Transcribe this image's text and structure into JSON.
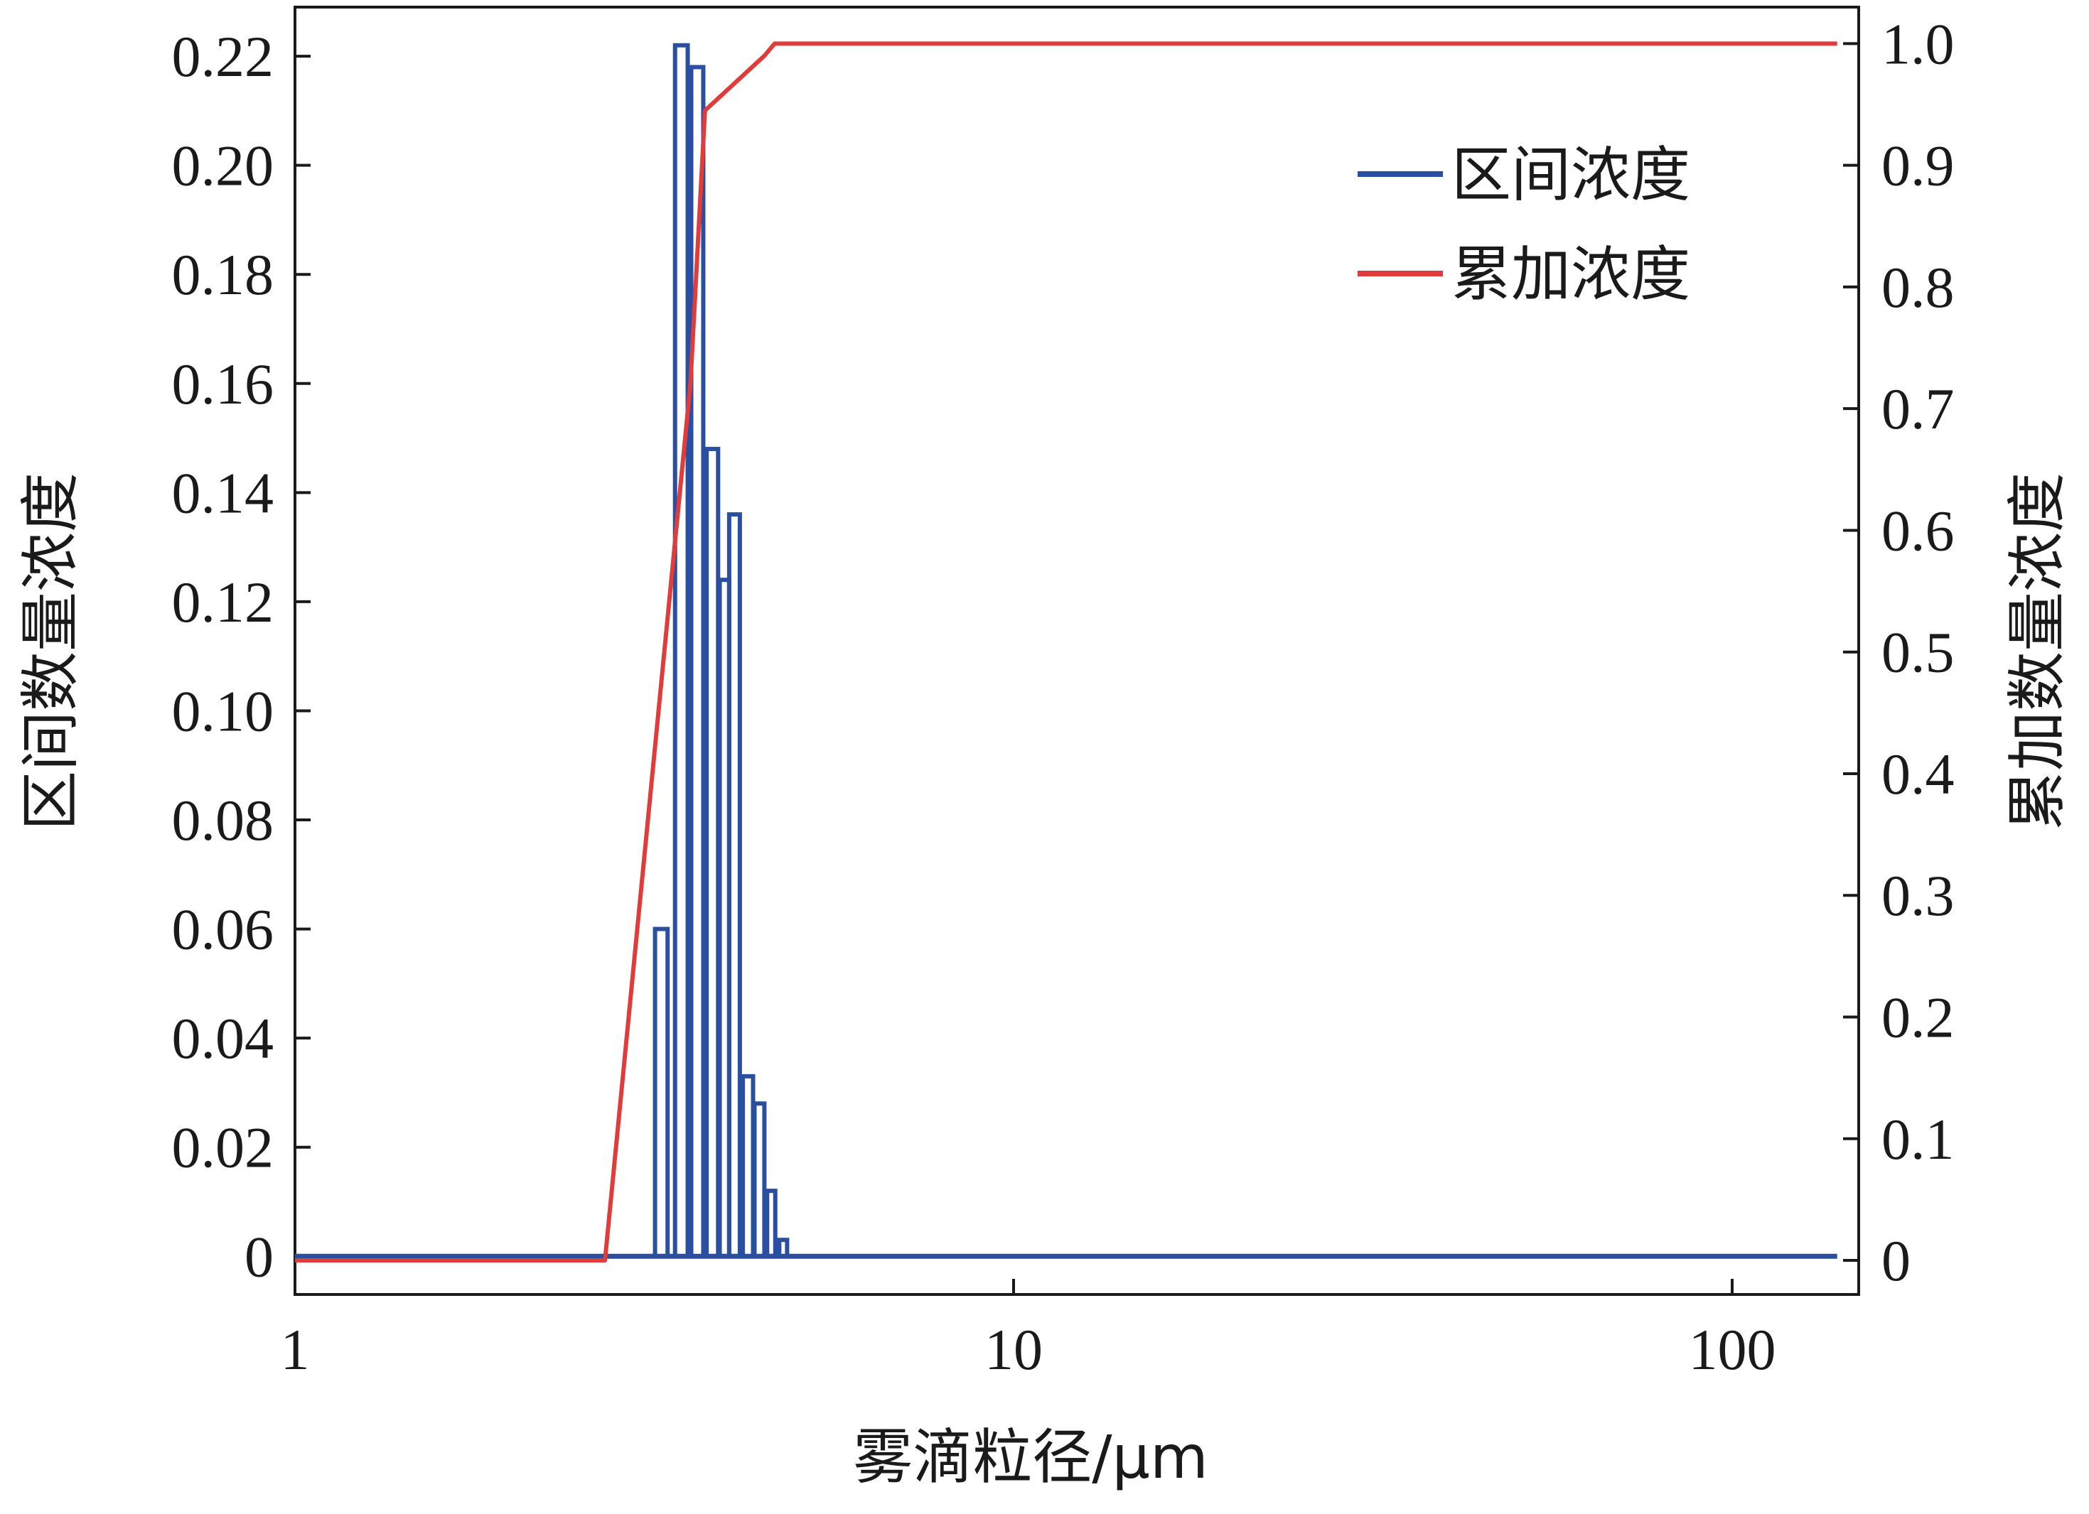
{
  "chart_data": {
    "type": "line",
    "x_scale": "log",
    "xlabel": "雾滴粒径/μm",
    "ylabel_left": "区间数量浓度",
    "ylabel_right": "累加数量浓度",
    "xlim": [
      1,
      150
    ],
    "ylim_left": [
      -0.007,
      0.229
    ],
    "ylim_right": [
      -0.028,
      1.03
    ],
    "x_ticks": [
      {
        "value": 1,
        "label": "1"
      },
      {
        "value": 10,
        "label": "10"
      },
      {
        "value": 100,
        "label": "100"
      }
    ],
    "y_left_ticks": [
      {
        "value": 0,
        "label": "0"
      },
      {
        "value": 0.02,
        "label": "0.02"
      },
      {
        "value": 0.04,
        "label": "0.04"
      },
      {
        "value": 0.06,
        "label": "0.06"
      },
      {
        "value": 0.08,
        "label": "0.08"
      },
      {
        "value": 0.1,
        "label": "0.10"
      },
      {
        "value": 0.12,
        "label": "0.12"
      },
      {
        "value": 0.14,
        "label": "0.14"
      },
      {
        "value": 0.16,
        "label": "0.16"
      },
      {
        "value": 0.18,
        "label": "0.18"
      },
      {
        "value": 0.2,
        "label": "0.20"
      },
      {
        "value": 0.22,
        "label": "0.22"
      }
    ],
    "y_right_ticks": [
      {
        "value": 0,
        "label": "0"
      },
      {
        "value": 0.1,
        "label": "0.1"
      },
      {
        "value": 0.2,
        "label": "0.2"
      },
      {
        "value": 0.3,
        "label": "0.3"
      },
      {
        "value": 0.4,
        "label": "0.4"
      },
      {
        "value": 0.5,
        "label": "0.5"
      },
      {
        "value": 0.6,
        "label": "0.6"
      },
      {
        "value": 0.7,
        "label": "0.7"
      },
      {
        "value": 0.8,
        "label": "0.8"
      },
      {
        "value": 0.9,
        "label": "0.9"
      },
      {
        "value": 1.0,
        "label": "1.0"
      }
    ],
    "grid": false,
    "legend": {
      "position": "top-right"
    },
    "series": [
      {
        "name": "区间浓度",
        "axis": "left",
        "color": "#2a4fa0",
        "style": "bars",
        "baseline_range": [
          1,
          140
        ],
        "bins": [
          {
            "x0": 3.17,
            "x1": 3.3,
            "y": 0.06
          },
          {
            "x0": 3.38,
            "x1": 3.52,
            "y": 0.222
          },
          {
            "x0": 3.56,
            "x1": 3.7,
            "y": 0.218
          },
          {
            "x0": 3.74,
            "x1": 3.88,
            "y": 0.148
          },
          {
            "x0": 3.9,
            "x1": 4.02,
            "y": 0.124
          },
          {
            "x0": 4.02,
            "x1": 4.16,
            "y": 0.136
          },
          {
            "x0": 4.2,
            "x1": 4.34,
            "y": 0.033
          },
          {
            "x0": 4.36,
            "x1": 4.5,
            "y": 0.028
          },
          {
            "x0": 4.54,
            "x1": 4.66,
            "y": 0.012
          },
          {
            "x0": 4.72,
            "x1": 4.84,
            "y": 0.003
          }
        ]
      },
      {
        "name": "累加浓度",
        "axis": "right",
        "color": "#e03c3c",
        "style": "line",
        "points": [
          [
            1,
            0.0
          ],
          [
            2.7,
            0.0
          ],
          [
            3.55,
            0.72
          ],
          [
            3.72,
            0.945
          ],
          [
            4.5,
            0.99
          ],
          [
            4.65,
            1.0
          ],
          [
            140,
            1.0
          ]
        ]
      }
    ]
  }
}
